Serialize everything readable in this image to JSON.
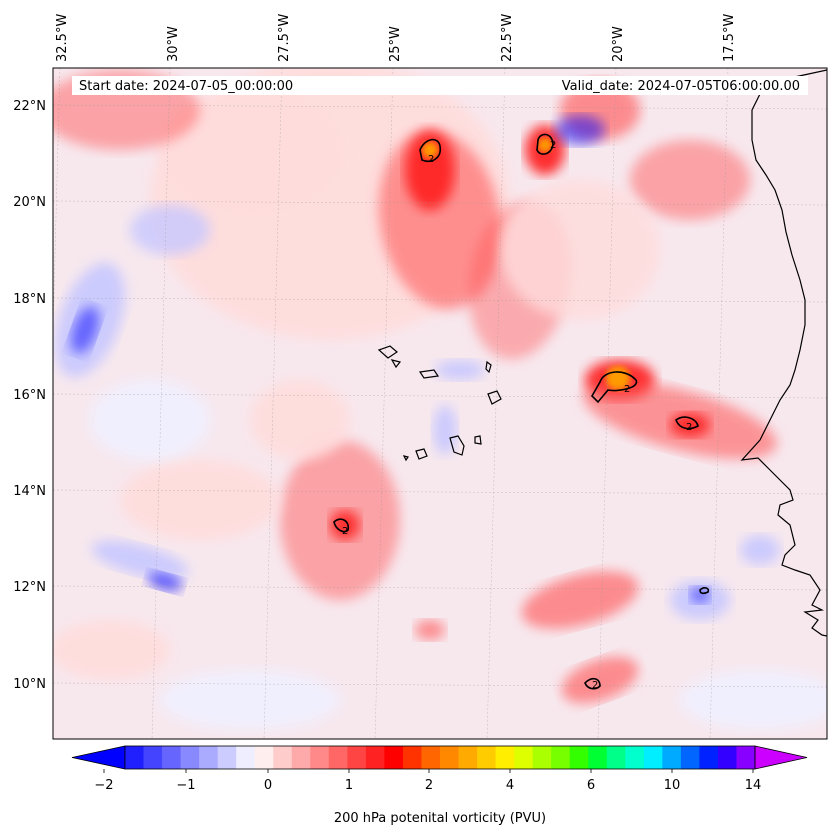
{
  "header": {
    "start_date": "Start date: 2024-07-05_00:00:00",
    "valid_date": "Valid_date: 2024-07-05T06:00:00.00"
  },
  "map": {
    "lon_labels": [
      "32.5°W",
      "30°W",
      "27.5°W",
      "25°W",
      "22.5°W",
      "20°W",
      "17.5°W"
    ],
    "lat_labels": [
      "22°N",
      "20°N",
      "18°N",
      "16°N",
      "14°N",
      "12°N",
      "10°N"
    ],
    "contour_level": "2",
    "colors": {
      "strong_blue": "#0000ff",
      "light_blue": "#c8c8ff",
      "near_zero": "#f0f0ff",
      "light_red": "#ffdcdc",
      "red": "#ff5050",
      "strong_red": "#ff0000",
      "orange": "#ff9a00",
      "coastline": "#000000"
    }
  },
  "colorbar": {
    "label": "200 hPa potenital vorticity (PVU)",
    "tick_labels": [
      "−2",
      "−1",
      "0",
      "1",
      "2",
      "4",
      "6",
      "10",
      "14"
    ],
    "colors": [
      "#0000ff",
      "#2020ff",
      "#4444ff",
      "#6666ff",
      "#8888ff",
      "#aaaaff",
      "#ccccff",
      "#eeeeff",
      "#ffeeee",
      "#ffcccc",
      "#ffaaaa",
      "#ff8888",
      "#ff6666",
      "#ff4444",
      "#ff2222",
      "#ff0000",
      "#ff3300",
      "#ff6600",
      "#ff8800",
      "#ffaa00",
      "#ffcc00",
      "#ffee00",
      "#ddff00",
      "#aaff00",
      "#77ff00",
      "#33ff00",
      "#00ff33",
      "#00ff88",
      "#00ffcc",
      "#00eeff",
      "#00aaff",
      "#0066ff",
      "#0022ff",
      "#3300ff",
      "#8800ff",
      "#cc00ff"
    ]
  }
}
